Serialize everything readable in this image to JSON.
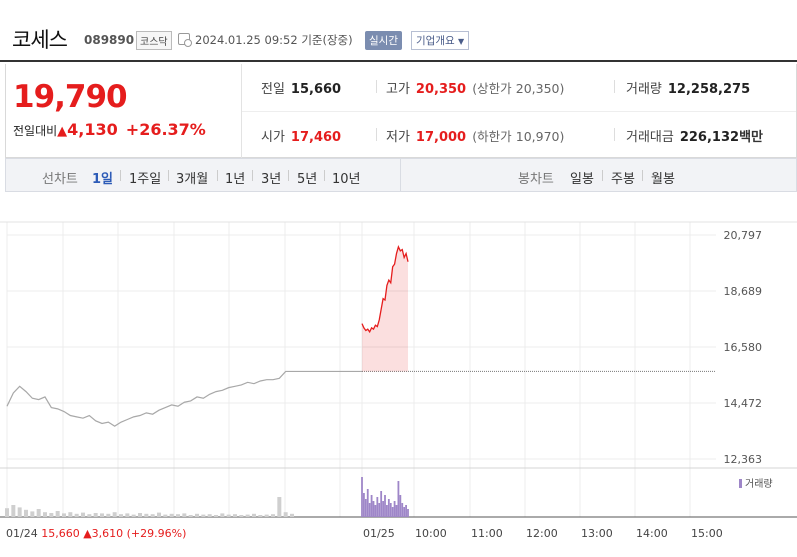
{
  "header": {
    "stock_name": "코세스",
    "stock_code": "089890",
    "market": "코스닥",
    "timestamp": "2024.01.25 09:52",
    "basis": "기준(장중)",
    "realtime_label": "실시간",
    "company_info_label": "기업개요",
    "company_info_icon": "caret-down-icon"
  },
  "quote": {
    "price": "19,790",
    "change_label": "전일대비",
    "change_value": "4,130",
    "change_pct": "+26.37%",
    "prev_close": {
      "label": "전일",
      "value": "15,660"
    },
    "high": {
      "label": "고가",
      "value": "20,350",
      "limit_label": "(상한가",
      "limit_value": "20,350)"
    },
    "volume": {
      "label": "거래량",
      "value": "12,258,275"
    },
    "open": {
      "label": "시가",
      "value": "17,460"
    },
    "low": {
      "label": "저가",
      "value": "17,000",
      "limit_label": "(하한가",
      "limit_value": "10,970)"
    },
    "amount": {
      "label": "거래대금",
      "value": "226,132",
      "unit": "백만"
    }
  },
  "tabs": {
    "line_label": "선차트",
    "line_periods": [
      "1일",
      "1주일",
      "3개월",
      "1년",
      "3년",
      "5년",
      "10년"
    ],
    "active_period": "1일",
    "candle_label": "봉차트",
    "candle_periods": [
      "일봉",
      "주봉",
      "월봉"
    ]
  },
  "colors": {
    "up": "#e51d1d",
    "down": "#1e5fd0",
    "volume": "#9e86c8",
    "accent": "#2d5bb7"
  },
  "chart_data": {
    "type": "line",
    "y_ticks": [
      "20,797",
      "18,689",
      "16,580",
      "14,472",
      "12,363"
    ],
    "ylim": [
      12363,
      20797
    ],
    "x_labels": [
      "01/24",
      "01/25",
      "10:00",
      "11:00",
      "12:00",
      "13:00",
      "14:00",
      "15:00"
    ],
    "prev_day_label": "01/24",
    "prev_day_close": "15,660",
    "prev_day_change": "3,610",
    "prev_day_pct": "(+29.96%)",
    "volume_legend": "거래량",
    "prev_day_series": [
      14350,
      14850,
      15100,
      14900,
      14650,
      14600,
      14700,
      14300,
      14250,
      14150,
      14000,
      13950,
      13900,
      14000,
      13800,
      13700,
      13750,
      13600,
      13750,
      13850,
      13950,
      14000,
      14100,
      14050,
      14200,
      14300,
      14400,
      14350,
      14500,
      14550,
      14700,
      14650,
      14800,
      14900,
      14950,
      15050,
      15100,
      15150,
      15250,
      15200,
      15300,
      15350,
      15350,
      15400,
      15660,
      15660
    ],
    "today_series": [
      17460,
      17300,
      17200,
      17250,
      17150,
      17300,
      17250,
      17400,
      17350,
      17600,
      18000,
      18400,
      18350,
      18900,
      19100,
      19000,
      19600,
      19700,
      20100,
      20350,
      20200,
      20250,
      19950,
      20100,
      19790
    ],
    "prev_day_volume": [
      0.22,
      0.3,
      0.24,
      0.18,
      0.14,
      0.2,
      0.12,
      0.1,
      0.15,
      0.09,
      0.12,
      0.08,
      0.11,
      0.07,
      0.1,
      0.09,
      0.08,
      0.12,
      0.07,
      0.09,
      0.06,
      0.1,
      0.08,
      0.07,
      0.11,
      0.06,
      0.08,
      0.07,
      0.09,
      0.05,
      0.08,
      0.06,
      0.07,
      0.05,
      0.09,
      0.06,
      0.07,
      0.05,
      0.06,
      0.08,
      0.05,
      0.06,
      0.07,
      0.5,
      0.12,
      0.08
    ],
    "today_volume": [
      1.0,
      0.6,
      0.45,
      0.7,
      0.35,
      0.55,
      0.4,
      0.3,
      0.5,
      0.35,
      0.65,
      0.4,
      0.55,
      0.3,
      0.45,
      0.35,
      0.25,
      0.4,
      0.3,
      0.9,
      0.55,
      0.35,
      0.25,
      0.3,
      0.2
    ]
  }
}
